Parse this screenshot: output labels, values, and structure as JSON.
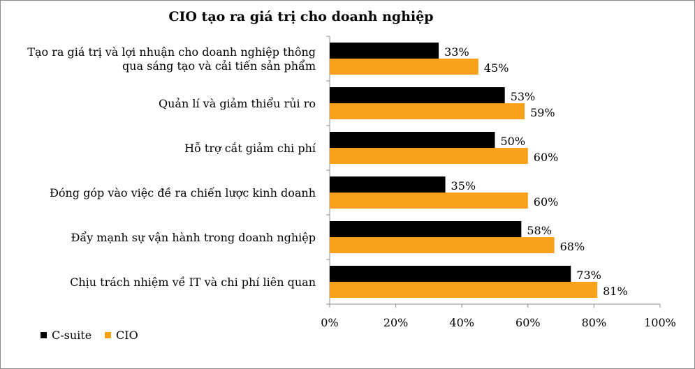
{
  "chart_data": {
    "type": "bar",
    "orientation": "horizontal",
    "title": "CIO tạo ra giá trị cho doanh nghiệp",
    "categories": [
      [
        "Tạo ra giá trị và lợi nhuận cho doanh nghiệp thông",
        "qua sáng tạo và cải tiến sản phẩm"
      ],
      [
        "Quản lí và giảm thiểu rủi ro"
      ],
      [
        "Hỗ trợ cắt giảm chi phí"
      ],
      [
        "Đóng góp vào việc đề ra chiến lược kinh doanh"
      ],
      [
        "Đẩy mạnh sự vận hành trong doanh nghiệp"
      ],
      [
        "Chịu trách nhiệm về IT và chi phí liên quan"
      ]
    ],
    "series": [
      {
        "name": "C-suite",
        "color": "#000000",
        "values": [
          33,
          53,
          50,
          35,
          58,
          73
        ],
        "labels": [
          "33%",
          "53%",
          "50%",
          "35%",
          "58%",
          "73%"
        ]
      },
      {
        "name": "CIO",
        "color": "#F9A11B",
        "values": [
          45,
          59,
          60,
          60,
          68,
          81
        ],
        "labels": [
          "45%",
          "59%",
          "60%",
          "60%",
          "68%",
          "81%"
        ]
      }
    ],
    "xlim": [
      0,
      100
    ],
    "xticks": [
      "0%",
      "20%",
      "40%",
      "60%",
      "80%",
      "100%"
    ],
    "grid": false,
    "legend_position": "bottom-left"
  }
}
